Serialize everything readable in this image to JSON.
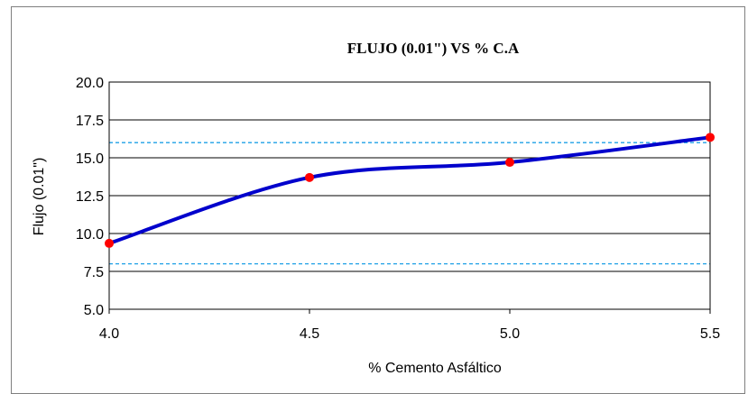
{
  "chart_data": {
    "type": "line",
    "title": "FLUJO (0.01\") VS % C.A",
    "xlabel": "% Cemento Asfáltico",
    "ylabel": "Flujo (0.01\")",
    "xlim": [
      4.0,
      5.5
    ],
    "ylim": [
      5.0,
      20.0
    ],
    "x_ticks": [
      "4.0",
      "4.5",
      "5.0",
      "5.5"
    ],
    "y_ticks": [
      "5.0",
      "7.5",
      "10.0",
      "12.5",
      "15.0",
      "17.5",
      "20.0"
    ],
    "grid": "horizontal",
    "legend": "none",
    "series": [
      {
        "marker_color": "#ff0000",
        "line_color": "#0000cc",
        "points": [
          {
            "x": 4.0,
            "y": 9.35
          },
          {
            "x": 4.5,
            "y": 13.7
          },
          {
            "x": 5.0,
            "y": 14.7
          },
          {
            "x": 5.5,
            "y": 16.35
          }
        ]
      }
    ],
    "reference_lines": [
      {
        "y": 16.0,
        "color": "#1ea0e6",
        "style": "dashed"
      },
      {
        "y": 8.0,
        "color": "#1ea0e6",
        "style": "dashed"
      }
    ]
  }
}
